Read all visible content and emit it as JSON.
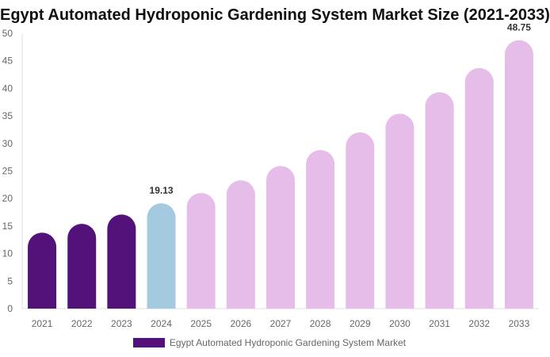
{
  "chart_data": {
    "type": "bar",
    "title": "Egypt Automated Hydroponic Gardening System Market Size (2021-2033)",
    "categories": [
      "2021",
      "2022",
      "2023",
      "2024",
      "2025",
      "2026",
      "2027",
      "2028",
      "2029",
      "2030",
      "2031",
      "2032",
      "2033"
    ],
    "series": [
      {
        "name": "Egypt Automated Hydroponic Gardening System Market",
        "values": [
          13.8,
          15.4,
          17.1,
          19.13,
          21.0,
          23.3,
          25.9,
          28.8,
          32.0,
          35.4,
          39.3,
          43.7,
          48.75
        ]
      }
    ],
    "data_labels": {
      "2024": "19.13",
      "2033": "48.75"
    },
    "colors": {
      "historical": "#52127a",
      "current": "#a3cadf",
      "forecast": "#e6bde8"
    },
    "ylim": [
      0,
      50
    ],
    "yticks": [
      0,
      5,
      10,
      15,
      20,
      25,
      30,
      35,
      40,
      45,
      50
    ],
    "xlabel": "",
    "ylabel": "",
    "grid": false,
    "legend": "bottom"
  }
}
